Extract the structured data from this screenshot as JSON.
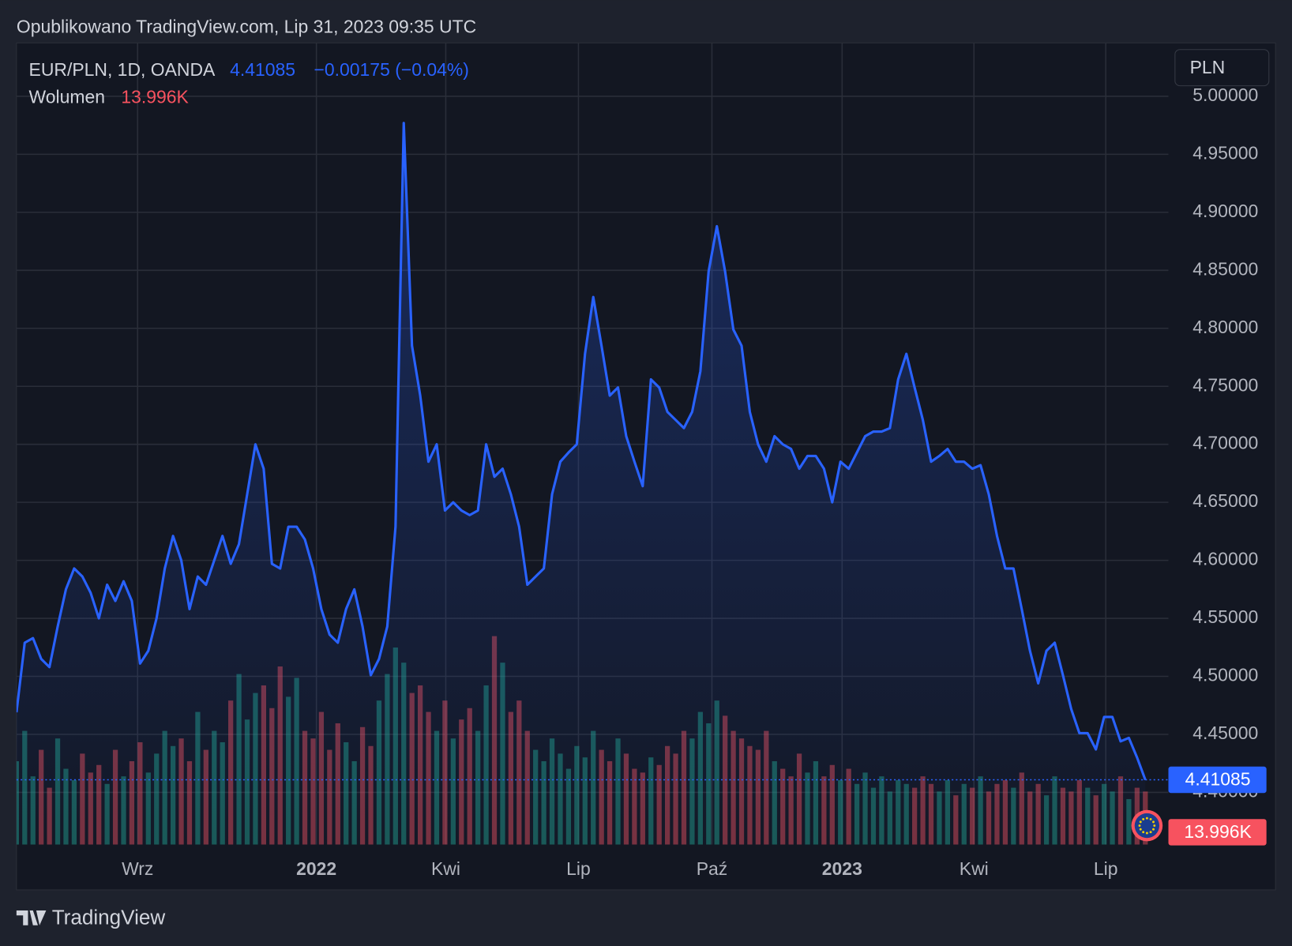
{
  "header": {
    "published": "Opublikowano TradingView.com, Lip 31, 2023 09:35 UTC",
    "change": "−0.00175 (−0.04%)",
    "currency": "PLN",
    "brand": "TradingView"
  },
  "chart_data": {
    "type": "area",
    "series": [
      {
        "name": "EUR/PLN, 1D, OANDA",
        "color": "#2962ff",
        "values": [
          4.469,
          4.529,
          4.533,
          4.515,
          4.508,
          4.543,
          4.575,
          4.593,
          4.586,
          4.572,
          4.55,
          4.579,
          4.565,
          4.582,
          4.565,
          4.511,
          4.522,
          4.55,
          4.593,
          4.621,
          4.6,
          4.558,
          4.586,
          4.579,
          4.6,
          4.621,
          4.597,
          4.614,
          4.657,
          4.7,
          4.679,
          4.597,
          4.593,
          4.629,
          4.629,
          4.618,
          4.593,
          4.558,
          4.536,
          4.529,
          4.558,
          4.575,
          4.543,
          4.501,
          4.515,
          4.543,
          4.629,
          4.977,
          4.785,
          4.742,
          4.685,
          4.7,
          4.643,
          4.65,
          4.643,
          4.639,
          4.643,
          4.7,
          4.672,
          4.679,
          4.657,
          4.629,
          4.579,
          4.586,
          4.593,
          4.657,
          4.685,
          4.693,
          4.7,
          4.778,
          4.827,
          4.785,
          4.742,
          4.749,
          4.707,
          4.685,
          4.664,
          4.756,
          4.749,
          4.728,
          4.721,
          4.714,
          4.728,
          4.763,
          4.849,
          4.888,
          4.849,
          4.799,
          4.785,
          4.728,
          4.7,
          4.685,
          4.707,
          4.7,
          4.696,
          4.679,
          4.69,
          4.69,
          4.679,
          4.65,
          4.685,
          4.679,
          4.693,
          4.707,
          4.711,
          4.711,
          4.714,
          4.756,
          4.778,
          4.749,
          4.721,
          4.685,
          4.69,
          4.696,
          4.685,
          4.685,
          4.679,
          4.682,
          4.657,
          4.621,
          4.593,
          4.593,
          4.558,
          4.522,
          4.494,
          4.522,
          4.529,
          4.501,
          4.472,
          4.451,
          4.451,
          4.437,
          4.465,
          4.465,
          4.444,
          4.447,
          4.43,
          4.41085
        ]
      }
    ],
    "volume": {
      "name": "Wolumen",
      "up_color": "#22ab94",
      "down_color": "#f7525f",
      "values": [
        22,
        30,
        18,
        25,
        15,
        28,
        20,
        17,
        24,
        19,
        21,
        16,
        25,
        18,
        22,
        27,
        19,
        24,
        30,
        26,
        28,
        22,
        35,
        25,
        30,
        27,
        38,
        45,
        33,
        40,
        42,
        36,
        47,
        39,
        44,
        30,
        28,
        35,
        25,
        32,
        27,
        22,
        31,
        26,
        38,
        45,
        52,
        48,
        40,
        42,
        35,
        30,
        38,
        28,
        33,
        36,
        30,
        42,
        55,
        48,
        35,
        38,
        30,
        25,
        22,
        28,
        24,
        20,
        26,
        23,
        30,
        25,
        22,
        28,
        24,
        20,
        19,
        23,
        21,
        26,
        24,
        30,
        28,
        35,
        32,
        38,
        34,
        30,
        28,
        26,
        25,
        30,
        22,
        20,
        18,
        24,
        19,
        22,
        18,
        21,
        17,
        20,
        16,
        19,
        15,
        18,
        14,
        17,
        16,
        15,
        18,
        16,
        14,
        17,
        13,
        16,
        15,
        18,
        14,
        16,
        17,
        15,
        19,
        14,
        16,
        13,
        18,
        15,
        14,
        17,
        15,
        13,
        16,
        14,
        18,
        12,
        15,
        13.996
      ],
      "value_labels": {
        "137": "13.996K"
      }
    },
    "xlim": [
      0,
      139.8
    ],
    "xticks": [
      {
        "value": 14.7,
        "label": "Wrz"
      },
      {
        "value": 36.4,
        "label": "2022"
      },
      {
        "value": 52.1,
        "label": "Kwi"
      },
      {
        "value": 68.2,
        "label": "Lip"
      },
      {
        "value": 84.4,
        "label": "Paź"
      },
      {
        "value": 100.2,
        "label": "2023"
      },
      {
        "value": 116.2,
        "label": "Kwi"
      },
      {
        "value": 132.2,
        "label": "Lip"
      }
    ],
    "ylim": [
      4.355,
      5.046
    ],
    "yticks": [
      {
        "value": 4.4,
        "label": "4.40000"
      },
      {
        "value": 4.45,
        "label": "4.45000"
      },
      {
        "value": 4.5,
        "label": "4.50000"
      },
      {
        "value": 4.55,
        "label": "4.55000"
      },
      {
        "value": 4.6,
        "label": "4.60000"
      },
      {
        "value": 4.65,
        "label": "4.65000"
      },
      {
        "value": 4.7,
        "label": "4.70000"
      },
      {
        "value": 4.75,
        "label": "4.75000"
      },
      {
        "value": 4.8,
        "label": "4.80000"
      },
      {
        "value": 4.85,
        "label": "4.85000"
      },
      {
        "value": 4.9,
        "label": "4.90000"
      },
      {
        "value": 4.95,
        "label": "4.95000"
      },
      {
        "value": 5.0,
        "label": "5.00000"
      }
    ],
    "grid": true
  }
}
